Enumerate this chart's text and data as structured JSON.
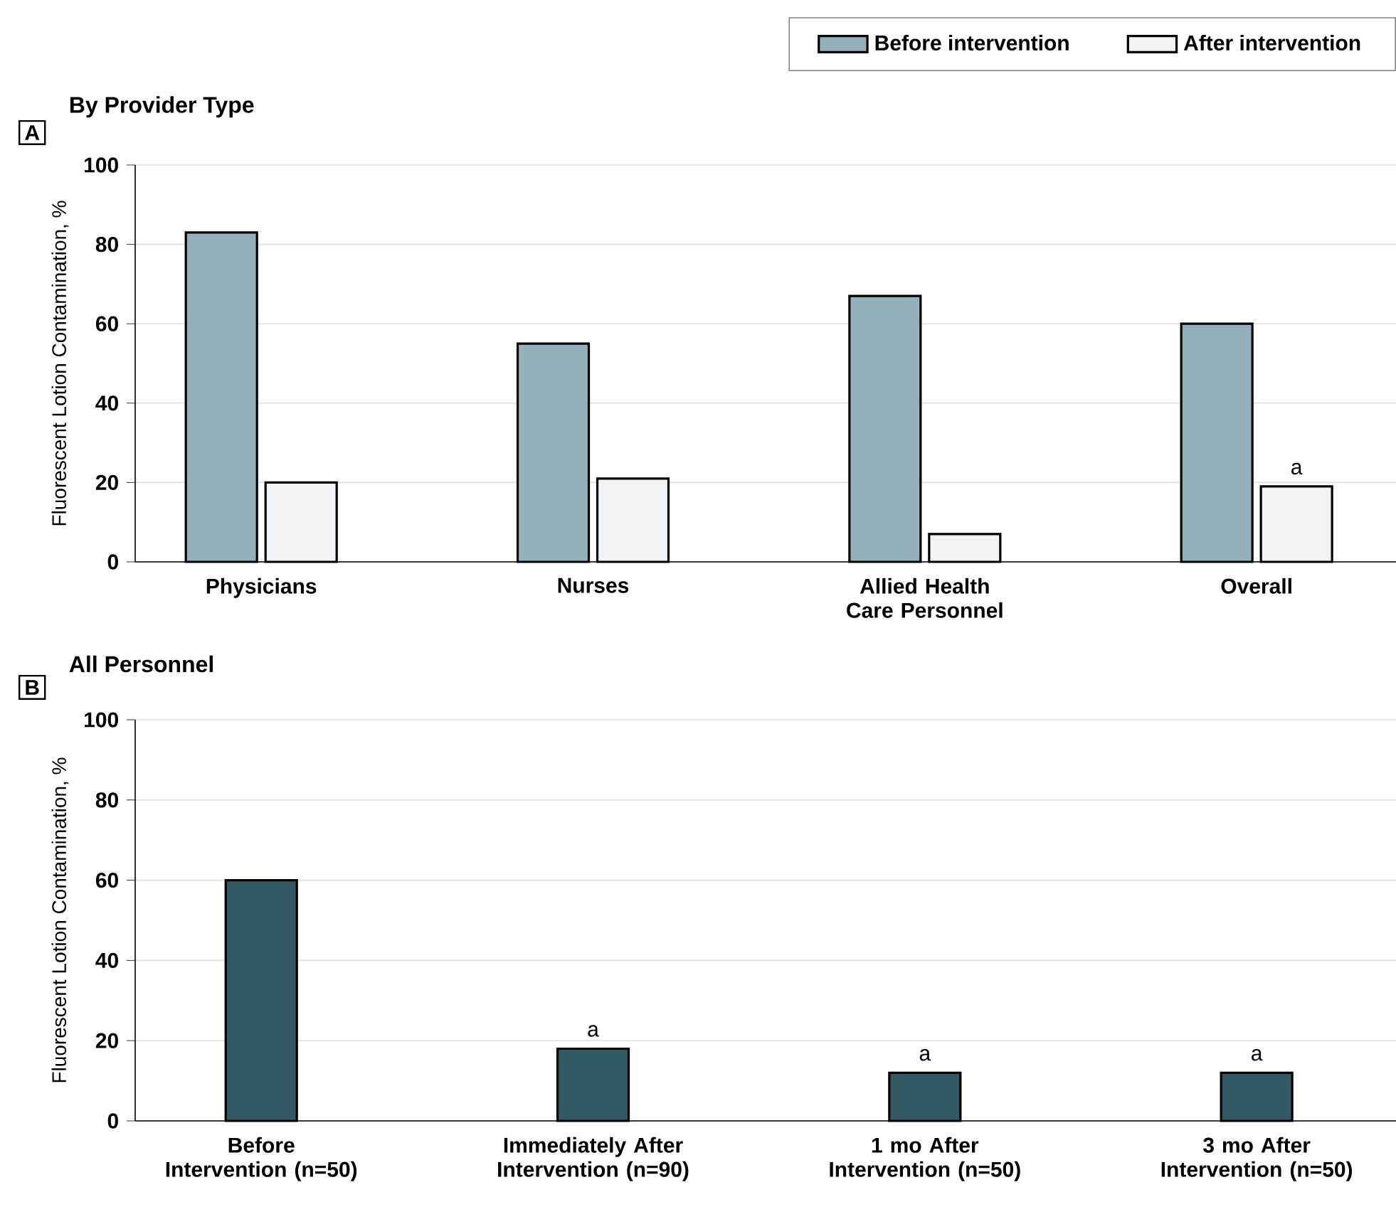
{
  "chart_data": [
    {
      "type": "bar",
      "title": "By Provider Type",
      "ylabel": "Fluorescent Lotion Contamination, %",
      "categories": [
        "Physicians",
        "Nurses",
        "Allied Health Care Personnel",
        "Overall"
      ],
      "series": [
        {
          "name": "Before intervention",
          "color": "#94b0bb",
          "values": [
            83,
            55,
            67,
            60
          ]
        },
        {
          "name": "After intervention",
          "color": "#f0f4f7",
          "values": [
            20,
            21,
            7,
            19
          ]
        }
      ],
      "annotations": [
        "A",
        {
          "text": "a",
          "x": "Overall",
          "y": 19
        }
      ],
      "ylim": [
        0,
        100
      ],
      "yticks": [
        0,
        20,
        40,
        60,
        80,
        100
      ],
      "grid": "y",
      "legend": "top right"
    },
    {
      "type": "bar",
      "title": "All Personnel",
      "ylabel": "Fluorescent Lotion Contamination, %",
      "categories": [
        "Before Intervention (n=50)",
        "Immediately After Intervention (n=90)",
        "1 mo After Intervention (n=50)",
        "3 mo After Intervention (n=50)"
      ],
      "values": [
        60,
        18,
        12,
        12
      ],
      "color": "#335a64",
      "annotations": [
        "B",
        {
          "text": "a",
          "x": "Immediately After Intervention (n=90)",
          "y": 18
        },
        {
          "text": "a",
          "x": "1 mo After Intervention (n=50)",
          "y": 12
        },
        {
          "text": "a",
          "x": "3 mo After Intervention (n=50)",
          "y": 12
        }
      ],
      "ylim": [
        0,
        100
      ],
      "yticks": [
        0,
        20,
        40,
        60,
        80,
        100
      ],
      "grid": "y"
    }
  ]
}
